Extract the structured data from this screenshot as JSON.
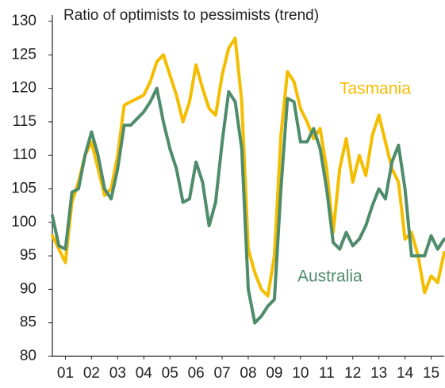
{
  "chart_data": {
    "type": "line",
    "title": "Ratio of optimists to pessimists (trend)",
    "annotations": [
      "Tasmania",
      "Australia"
    ],
    "x": [
      1,
      1.25,
      1.5,
      1.75,
      2,
      2.25,
      2.5,
      2.75,
      3,
      3.25,
      3.5,
      3.75,
      4,
      4.25,
      4.5,
      4.75,
      5,
      5.25,
      5.5,
      5.75,
      6,
      6.25,
      6.5,
      6.75,
      7,
      7.25,
      7.5,
      7.75,
      8,
      8.25,
      8.5,
      8.75,
      9,
      9.25,
      9.5,
      9.75,
      10,
      10.25,
      10.5,
      10.75,
      11,
      11.25,
      11.5,
      11.75,
      12,
      12.25,
      12.5,
      12.75,
      13,
      13.25,
      13.5,
      13.75,
      14,
      14.25,
      14.5,
      14.75,
      15,
      15.25,
      15.5,
      15.75,
      16
    ],
    "series": [
      {
        "name": "Tasmania",
        "color": "#f5bd00",
        "values": [
          98,
          96,
          94,
          103,
          106,
          110,
          112,
          108,
          104,
          105,
          110,
          117.5,
          118,
          118.5,
          119,
          121,
          124,
          125,
          122,
          119,
          115,
          118,
          123.5,
          120,
          117,
          116,
          122,
          126,
          127.5,
          118,
          96,
          92.5,
          90,
          89,
          95,
          113,
          122.5,
          121,
          117,
          115,
          112.5,
          114,
          108,
          98.5,
          108,
          112.5,
          106,
          110,
          107,
          113,
          116,
          112,
          108,
          106,
          97.5,
          98.5,
          95,
          89.5,
          92,
          91,
          95.5
        ]
      },
      {
        "name": "Australia",
        "color": "#4e8c6b",
        "values": [
          101,
          96.5,
          96,
          104.5,
          105,
          110,
          113.5,
          110,
          105,
          103.5,
          108,
          114.5,
          114.5,
          115.5,
          116.5,
          118,
          120,
          115,
          111,
          108,
          103,
          103.5,
          109,
          106,
          99.5,
          103,
          112,
          119.5,
          118,
          111,
          90,
          85,
          86,
          87.5,
          88.5,
          105,
          118.5,
          118,
          112,
          112,
          114,
          111,
          105,
          97,
          96,
          98.5,
          96.5,
          97.5,
          99.5,
          102.5,
          105,
          103.5,
          109,
          111.5,
          105,
          95,
          95,
          95,
          98,
          96,
          97.5
        ]
      }
    ],
    "xlim": [
      1,
      16
    ],
    "xticks": [
      {
        "value": 1.5,
        "label": "01"
      },
      {
        "value": 2.5,
        "label": "02"
      },
      {
        "value": 3.5,
        "label": "03"
      },
      {
        "value": 4.5,
        "label": "04"
      },
      {
        "value": 5.5,
        "label": "05"
      },
      {
        "value": 6.5,
        "label": "06"
      },
      {
        "value": 7.5,
        "label": "07"
      },
      {
        "value": 8.5,
        "label": "08"
      },
      {
        "value": 9.5,
        "label": "09"
      },
      {
        "value": 10.5,
        "label": "10"
      },
      {
        "value": 11.5,
        "label": "11"
      },
      {
        "value": 12.5,
        "label": "12"
      },
      {
        "value": 13.5,
        "label": "13"
      },
      {
        "value": 14.5,
        "label": "14"
      },
      {
        "value": 15.5,
        "label": "15"
      }
    ],
    "ylim": [
      80,
      130
    ],
    "yticks": [
      80,
      85,
      90,
      95,
      100,
      105,
      110,
      115,
      120,
      125,
      130
    ],
    "grid": false
  }
}
